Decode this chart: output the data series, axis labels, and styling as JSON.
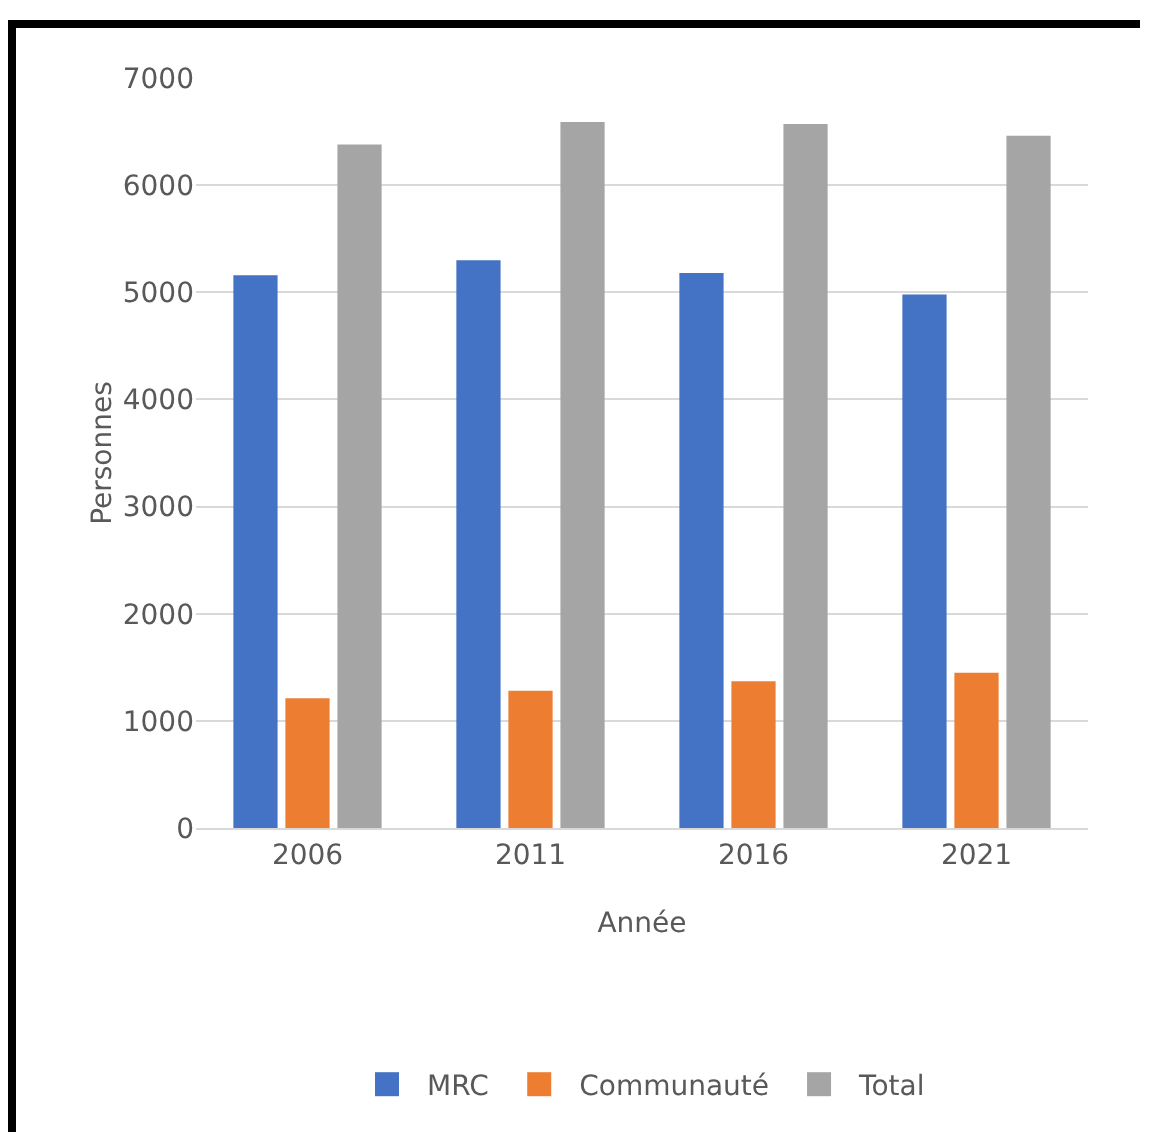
{
  "chart_data": {
    "type": "bar",
    "xlabel": "Année",
    "ylabel": "Personnes",
    "categories": [
      "2006",
      "2011",
      "2016",
      "2021"
    ],
    "series": [
      {
        "name": "MRC",
        "color": "#4472c4",
        "values": [
          5160,
          5300,
          5180,
          4980
        ]
      },
      {
        "name": "Communauté",
        "color": "#ed7d31",
        "values": [
          1210,
          1280,
          1370,
          1450
        ]
      },
      {
        "name": "Total",
        "color": "#a5a5a5",
        "values": [
          6380,
          6590,
          6570,
          6460
        ]
      }
    ],
    "ylim": [
      0,
      7000
    ],
    "yticks": [
      0,
      1000,
      2000,
      3000,
      4000,
      5000,
      6000,
      7000
    ],
    "grid": "y",
    "legend": "bottom"
  }
}
